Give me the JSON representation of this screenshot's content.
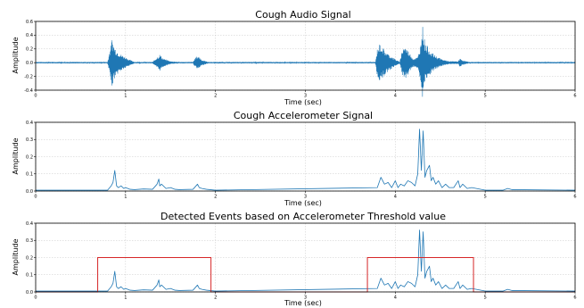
{
  "chart_data": [
    {
      "type": "line",
      "title": "Cough Audio Signal",
      "xlabel": "Time (sec)",
      "ylabel": "Amplitude",
      "xlim": [
        0,
        6
      ],
      "ylim": [
        -0.4,
        0.6
      ],
      "xticks": [
        0,
        1,
        2,
        3,
        4,
        5,
        6
      ],
      "yticks": [
        -0.4,
        -0.2,
        0.0,
        0.2,
        0.4,
        0.6
      ],
      "ytick_labels": [
        "-0.4",
        "-0.2",
        "0.0",
        "0.2",
        "0.4",
        "0.6"
      ],
      "grid": true,
      "color": "#1f77b4",
      "envelope": [
        [
          0.0,
          0.01
        ],
        [
          0.8,
          0.01
        ],
        [
          0.82,
          0.15
        ],
        [
          0.85,
          0.35
        ],
        [
          0.87,
          0.25
        ],
        [
          0.9,
          0.18
        ],
        [
          0.95,
          0.12
        ],
        [
          1.0,
          0.08
        ],
        [
          1.05,
          0.04
        ],
        [
          1.1,
          0.01
        ],
        [
          1.3,
          0.01
        ],
        [
          1.35,
          0.08
        ],
        [
          1.38,
          0.12
        ],
        [
          1.42,
          0.06
        ],
        [
          1.5,
          0.02
        ],
        [
          1.6,
          0.01
        ],
        [
          1.75,
          0.01
        ],
        [
          1.78,
          0.08
        ],
        [
          1.81,
          0.1
        ],
        [
          1.85,
          0.04
        ],
        [
          1.92,
          0.01
        ],
        [
          3.78,
          0.01
        ],
        [
          3.8,
          0.2
        ],
        [
          3.83,
          0.28
        ],
        [
          3.86,
          0.22
        ],
        [
          3.9,
          0.15
        ],
        [
          3.95,
          0.1
        ],
        [
          4.0,
          0.05
        ],
        [
          4.05,
          0.01
        ],
        [
          4.05,
          0.02
        ],
        [
          4.08,
          0.2
        ],
        [
          4.1,
          0.25
        ],
        [
          4.14,
          0.18
        ],
        [
          4.2,
          0.06
        ],
        [
          4.25,
          0.08
        ],
        [
          4.28,
          0.25
        ],
        [
          4.3,
          0.58
        ],
        [
          4.33,
          0.3
        ],
        [
          4.4,
          0.15
        ],
        [
          4.45,
          0.1
        ],
        [
          4.52,
          0.05
        ],
        [
          4.6,
          0.02
        ],
        [
          4.7,
          0.02
        ],
        [
          4.72,
          0.06
        ],
        [
          4.76,
          0.03
        ],
        [
          4.82,
          0.01
        ],
        [
          6.0,
          0.01
        ]
      ]
    },
    {
      "type": "line",
      "title": "Cough Accelerometer Signal",
      "xlabel": "Time (sec)",
      "ylabel": "Amplitude",
      "xlim": [
        0,
        6
      ],
      "ylim": [
        0,
        0.4
      ],
      "xticks": [
        0,
        1,
        2,
        3,
        4,
        5,
        6
      ],
      "yticks": [
        0.0,
        0.1,
        0.2,
        0.3,
        0.4
      ],
      "ytick_labels": [
        "0.0",
        "0.1",
        "0.2",
        "0.3",
        "0.4"
      ],
      "grid": true,
      "color": "#1f77b4",
      "x": [
        0.0,
        0.8,
        0.84,
        0.86,
        0.88,
        0.9,
        0.92,
        0.95,
        0.98,
        1.0,
        1.05,
        1.1,
        1.2,
        1.3,
        1.35,
        1.37,
        1.38,
        1.4,
        1.45,
        1.5,
        1.55,
        1.6,
        1.75,
        1.8,
        1.82,
        1.85,
        1.9,
        2.0,
        3.8,
        3.84,
        3.88,
        3.92,
        3.96,
        4.0,
        4.03,
        4.06,
        4.1,
        4.14,
        4.18,
        4.22,
        4.25,
        4.27,
        4.29,
        4.31,
        4.33,
        4.35,
        4.38,
        4.4,
        4.42,
        4.45,
        4.48,
        4.52,
        4.56,
        4.6,
        4.65,
        4.7,
        4.72,
        4.75,
        4.8,
        4.85,
        5.0,
        5.2,
        5.25,
        5.3,
        6.0
      ],
      "y": [
        0.005,
        0.005,
        0.03,
        0.05,
        0.12,
        0.03,
        0.02,
        0.03,
        0.015,
        0.02,
        0.01,
        0.008,
        0.012,
        0.01,
        0.04,
        0.07,
        0.03,
        0.04,
        0.015,
        0.02,
        0.01,
        0.008,
        0.01,
        0.04,
        0.02,
        0.015,
        0.01,
        0.005,
        0.02,
        0.08,
        0.04,
        0.05,
        0.02,
        0.06,
        0.02,
        0.04,
        0.03,
        0.06,
        0.05,
        0.03,
        0.1,
        0.36,
        0.12,
        0.35,
        0.08,
        0.12,
        0.15,
        0.06,
        0.08,
        0.04,
        0.06,
        0.02,
        0.04,
        0.02,
        0.02,
        0.06,
        0.02,
        0.04,
        0.015,
        0.02,
        0.005,
        0.005,
        0.015,
        0.008,
        0.005
      ]
    },
    {
      "type": "line",
      "title": "Detected Events based on Accelerometer Threshold value",
      "xlabel": "Time (sec)",
      "ylabel": "Amplitude",
      "xlim": [
        0,
        6
      ],
      "ylim": [
        0,
        0.4
      ],
      "xticks": [
        0,
        1,
        2,
        3,
        4,
        5,
        6
      ],
      "yticks": [
        0.0,
        0.1,
        0.2,
        0.3,
        0.4
      ],
      "ytick_labels": [
        "0.0",
        "0.1",
        "0.2",
        "0.3",
        "0.4"
      ],
      "grid": true,
      "color": "#1f77b4",
      "event_color": "#d62728",
      "events": [
        [
          0.69,
          1.95
        ],
        [
          3.69,
          4.87
        ]
      ],
      "event_level": 0.2,
      "signal_from": 1
    }
  ]
}
